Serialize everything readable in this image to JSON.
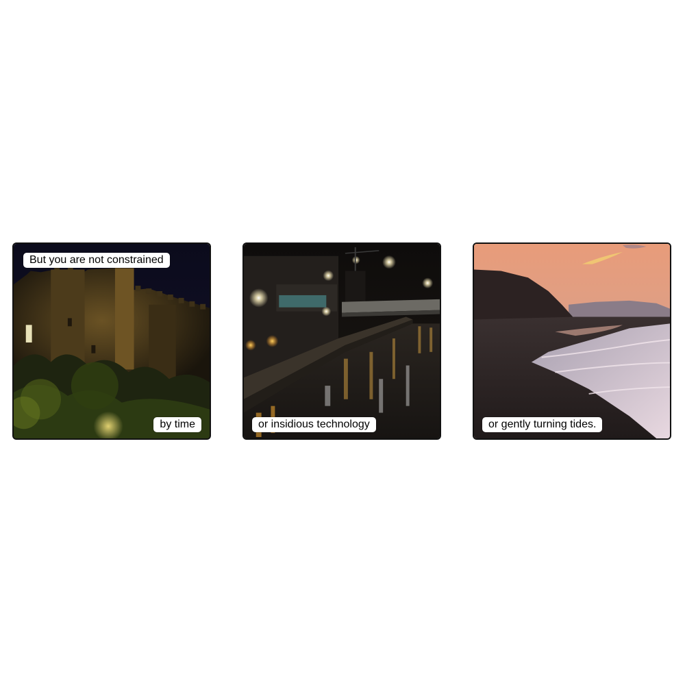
{
  "panels": [
    {
      "scene": "castle-at-night",
      "captions": [
        "But you are not constrained",
        "by time"
      ]
    },
    {
      "scene": "riverfront-city-at-night",
      "captions": [
        "or insidious technology"
      ]
    },
    {
      "scene": "beach-at-sunset",
      "captions": [
        "or gently turning tides."
      ]
    }
  ],
  "colors": {
    "border": "#111111",
    "caption_bg": "#ffffff",
    "caption_text": "#000000"
  }
}
